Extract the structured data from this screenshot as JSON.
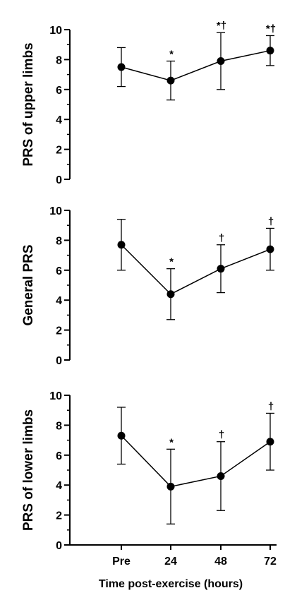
{
  "chart_data": [
    {
      "type": "line",
      "ylabel": "PRS of upper limbs",
      "ylim": [
        0,
        10
      ],
      "yticks": [
        0,
        2,
        4,
        6,
        8,
        10
      ],
      "x": [
        "Pre",
        "24",
        "48",
        "72"
      ],
      "series": [
        {
          "values": [
            7.5,
            6.6,
            7.9,
            8.6
          ],
          "error_low": [
            6.2,
            5.3,
            6.0,
            7.6
          ],
          "error_high": [
            8.8,
            7.9,
            9.8,
            9.6
          ],
          "annotations": [
            "",
            "*",
            "*†",
            "*†"
          ]
        }
      ]
    },
    {
      "type": "line",
      "ylabel": "General PRS",
      "ylim": [
        0,
        10
      ],
      "yticks": [
        0,
        2,
        4,
        6,
        8,
        10
      ],
      "x": [
        "Pre",
        "24",
        "48",
        "72"
      ],
      "series": [
        {
          "values": [
            7.7,
            4.4,
            6.1,
            7.4
          ],
          "error_low": [
            6.0,
            2.7,
            4.5,
            6.0
          ],
          "error_high": [
            9.4,
            6.1,
            7.7,
            8.8
          ],
          "annotations": [
            "",
            "*",
            "†",
            "†"
          ]
        }
      ]
    },
    {
      "type": "line",
      "ylabel": "PRS of lower limbs",
      "ylim": [
        0,
        10
      ],
      "yticks": [
        0,
        2,
        4,
        6,
        8,
        10
      ],
      "x": [
        "Pre",
        "24",
        "48",
        "72"
      ],
      "xlabel": "Time post-exercise (hours)",
      "series": [
        {
          "values": [
            7.3,
            3.9,
            4.6,
            6.9
          ],
          "error_low": [
            5.4,
            1.4,
            2.3,
            5.0
          ],
          "error_high": [
            9.2,
            6.4,
            6.9,
            8.8
          ],
          "annotations": [
            "",
            "*",
            "†",
            "†"
          ]
        }
      ]
    }
  ],
  "colors": {
    "line": "#000000",
    "marker": "#000000"
  }
}
